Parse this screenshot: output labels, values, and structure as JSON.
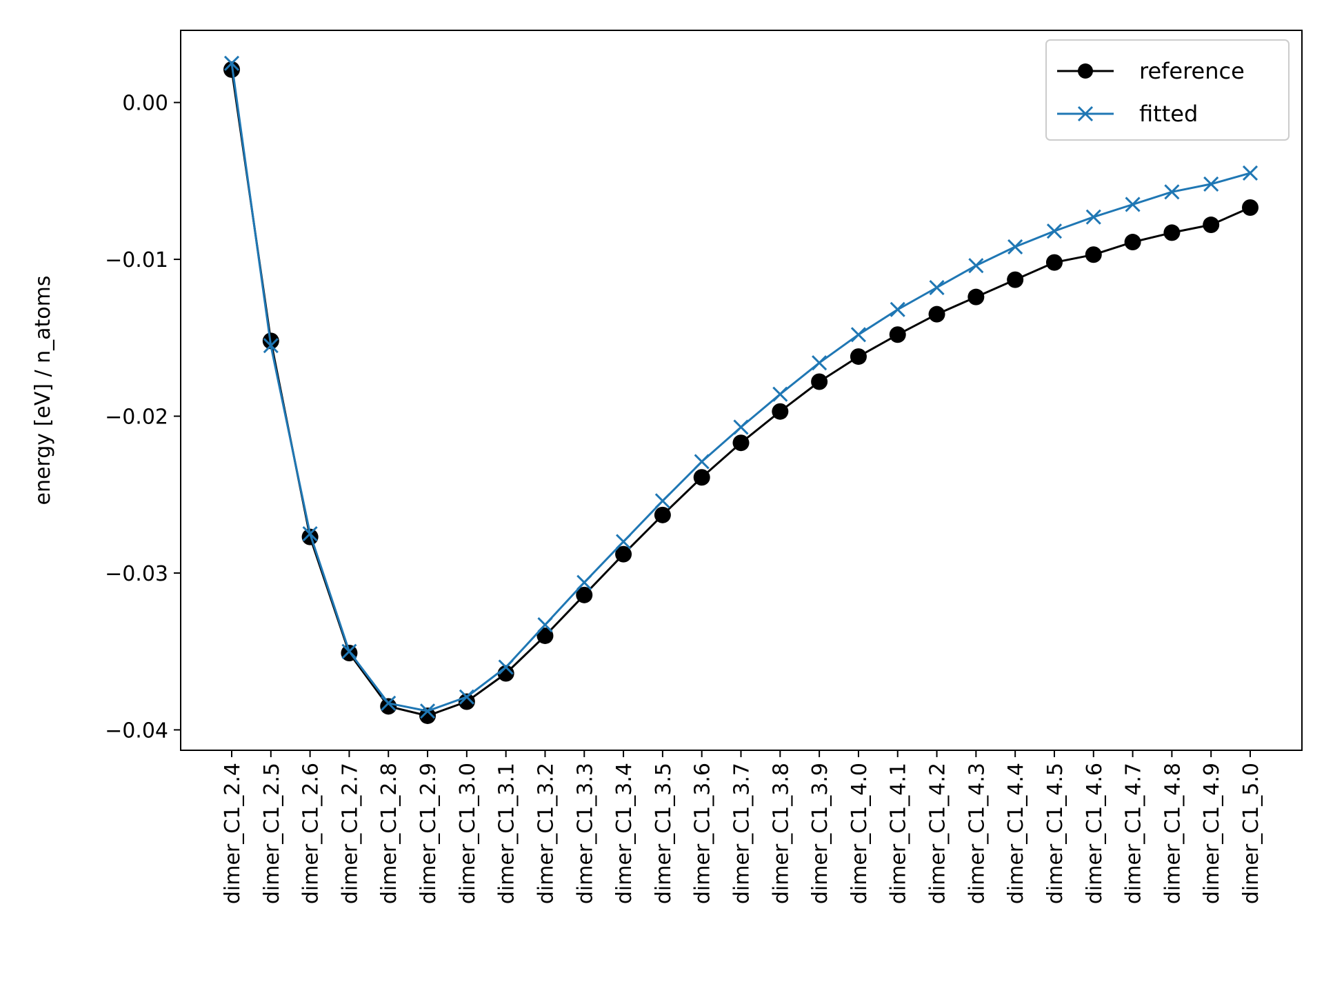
{
  "chart_data": {
    "type": "line",
    "title": "",
    "xlabel": "",
    "ylabel": "energy [eV] / n_atoms",
    "categories": [
      "dimer_C1_2.4",
      "dimer_C1_2.5",
      "dimer_C1_2.6",
      "dimer_C1_2.7",
      "dimer_C1_2.8",
      "dimer_C1_2.9",
      "dimer_C1_3.0",
      "dimer_C1_3.1",
      "dimer_C1_3.2",
      "dimer_C1_3.3",
      "dimer_C1_3.4",
      "dimer_C1_3.5",
      "dimer_C1_3.6",
      "dimer_C1_3.7",
      "dimer_C1_3.8",
      "dimer_C1_3.9",
      "dimer_C1_4.0",
      "dimer_C1_4.1",
      "dimer_C1_4.2",
      "dimer_C1_4.3",
      "dimer_C1_4.4",
      "dimer_C1_4.5",
      "dimer_C1_4.6",
      "dimer_C1_4.7",
      "dimer_C1_4.8",
      "dimer_C1_4.9",
      "dimer_C1_5.0"
    ],
    "ylim": [
      -0.0413,
      0.0046
    ],
    "yticks": [
      -0.04,
      -0.03,
      -0.02,
      -0.01,
      0.0
    ],
    "ytick_labels": [
      "−0.04",
      "−0.03",
      "−0.02",
      "−0.01",
      "0.00"
    ],
    "grid": false,
    "legend_position": "top-right",
    "series": [
      {
        "name": "reference",
        "color": "#000000",
        "marker": "circle",
        "values": [
          0.0021,
          -0.0152,
          -0.0277,
          -0.0351,
          -0.0385,
          -0.0391,
          -0.0382,
          -0.0364,
          -0.034,
          -0.0314,
          -0.0288,
          -0.0263,
          -0.0239,
          -0.0217,
          -0.0197,
          -0.0178,
          -0.0162,
          -0.0148,
          -0.0135,
          -0.0124,
          -0.0113,
          -0.0102,
          -0.0097,
          -0.0089,
          -0.0083,
          -0.0078,
          -0.0067
        ]
      },
      {
        "name": "fitted",
        "color": "#1f77b4",
        "marker": "x",
        "values": [
          0.0025,
          -0.0155,
          -0.0275,
          -0.035,
          -0.0383,
          -0.0388,
          -0.0379,
          -0.036,
          -0.0333,
          -0.0306,
          -0.028,
          -0.0254,
          -0.0229,
          -0.0207,
          -0.0186,
          -0.0166,
          -0.0148,
          -0.0132,
          -0.0118,
          -0.0104,
          -0.0092,
          -0.0082,
          -0.0073,
          -0.0065,
          -0.0057,
          -0.0052,
          -0.0045
        ]
      }
    ]
  }
}
